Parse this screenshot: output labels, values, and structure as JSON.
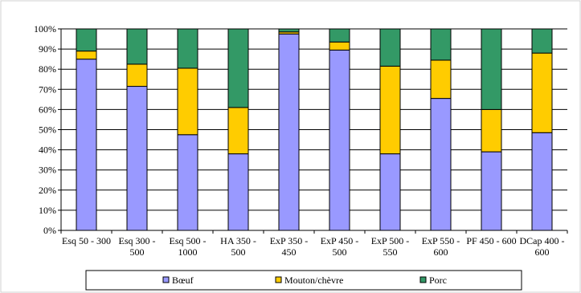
{
  "chart_data": {
    "type": "bar",
    "stacked": true,
    "categories": [
      [
        "Esq 50 - 300"
      ],
      [
        "Esq 300 -",
        "500"
      ],
      [
        "Esq 500 -",
        "1000"
      ],
      [
        "HA 350 -",
        "500"
      ],
      [
        "ExP 350 -",
        "450"
      ],
      [
        "ExP 450 -",
        "500"
      ],
      [
        "ExP 500 -",
        "550"
      ],
      [
        "ExP 550 -",
        "600"
      ],
      [
        "PF 450 - 600"
      ],
      [
        "DCap 400 -",
        "600"
      ]
    ],
    "series": [
      {
        "name": "Bœuf",
        "color": "#9999ff",
        "values": [
          85,
          71.5,
          47.5,
          38,
          97.5,
          89.5,
          38,
          65.5,
          39,
          48.5
        ]
      },
      {
        "name": "Mouton/chèvre",
        "color": "#ffcc00",
        "values": [
          4,
          11,
          33,
          23,
          1,
          4,
          43.5,
          19,
          21,
          39.5
        ]
      },
      {
        "name": "Porc",
        "color": "#339966",
        "values": [
          11,
          17.5,
          19.5,
          39,
          1.5,
          6.5,
          18.5,
          15.5,
          40,
          12
        ]
      }
    ],
    "yticks": [
      "0%",
      "10%",
      "20%",
      "30%",
      "40%",
      "50%",
      "60%",
      "70%",
      "80%",
      "90%",
      "100%"
    ],
    "ylim": [
      0,
      100
    ],
    "grid": true,
    "legend_position": "bottom"
  }
}
